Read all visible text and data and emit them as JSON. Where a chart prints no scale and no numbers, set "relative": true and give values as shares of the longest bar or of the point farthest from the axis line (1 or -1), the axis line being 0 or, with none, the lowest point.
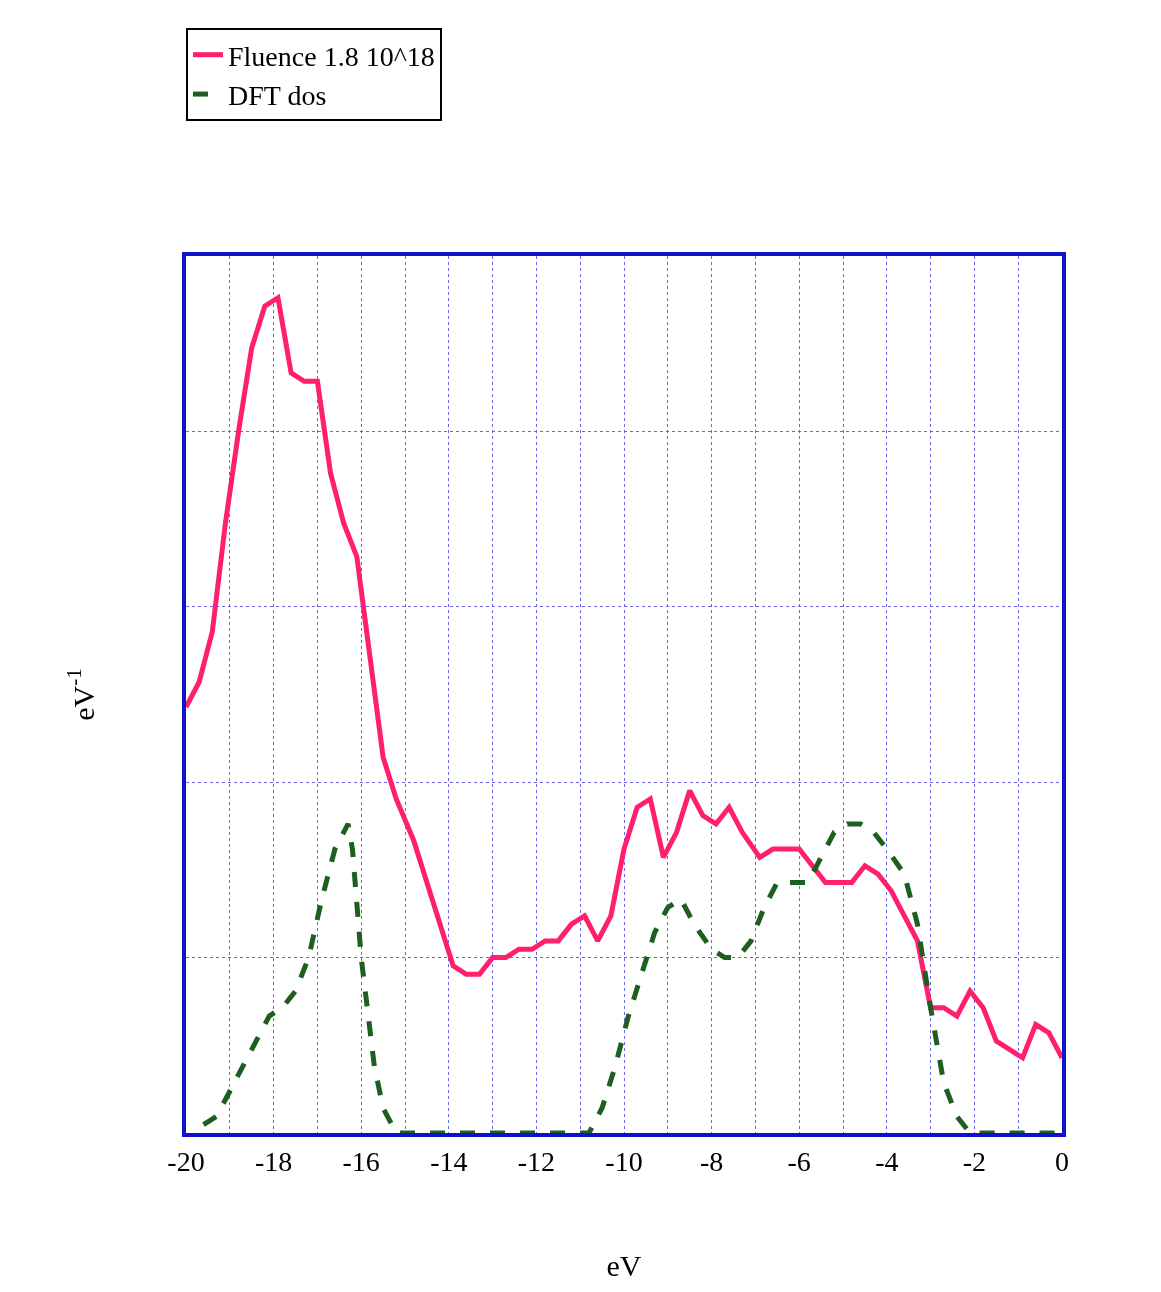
{
  "chart_data": {
    "type": "line",
    "relative": true,
    "xlabel": "eV",
    "ylabel": "eV$^{-1}$",
    "xlim": [
      -20,
      0
    ],
    "xticks": [
      -20,
      {
        "value": -19,
        "label": null
      },
      -18,
      {
        "value": -17,
        "label": null
      },
      -16,
      {
        "value": -15,
        "label": null
      },
      -14,
      {
        "value": -13,
        "label": null
      },
      -12,
      {
        "value": -11,
        "label": null
      },
      -10,
      {
        "value": -9,
        "label": null
      },
      -8,
      {
        "value": -7,
        "label": null
      },
      -6,
      {
        "value": -5,
        "label": null
      },
      -4,
      {
        "value": -3,
        "label": null
      },
      -2,
      {
        "value": -1,
        "label": null
      },
      0
    ],
    "grid": true,
    "legend": "top left",
    "marker": "none",
    "series": [
      {
        "name": "Fluence 1.8 10^18",
        "color": "#ff1f6e",
        "line_style": "solid",
        "x": [
          -20,
          -19.7,
          -19.4,
          -19.1,
          -18.8,
          -18.5,
          -18.2,
          -17.9,
          -17.6,
          -17.3,
          -17.0,
          -16.7,
          -16.4,
          -16.1,
          -15.8,
          -15.5,
          -15.2,
          -14.8,
          -14.5,
          -14.2,
          -13.9,
          -13.6,
          -13.3,
          -13.0,
          -12.7,
          -12.4,
          -12.1,
          -11.8,
          -11.5,
          -11.2,
          -10.9,
          -10.6,
          -10.3,
          -10.0,
          -9.7,
          -9.4,
          -9.1,
          -8.8,
          -8.5,
          -8.2,
          -7.9,
          -7.6,
          -7.3,
          -6.9,
          -6.6,
          -6.3,
          -6.0,
          -5.7,
          -5.4,
          -5.1,
          -4.8,
          -4.5,
          -4.2,
          -3.9,
          -3.6,
          -3.3,
          -3.0,
          -2.7,
          -2.4,
          -2.1,
          -1.8,
          -1.5,
          -1.2,
          -0.9,
          -0.6,
          -0.3,
          0
        ],
        "values": [
          0.51,
          0.54,
          0.6,
          0.73,
          0.84,
          0.94,
          0.99,
          1.0,
          0.91,
          0.9,
          0.9,
          0.79,
          0.73,
          0.69,
          0.57,
          0.45,
          0.4,
          0.35,
          0.3,
          0.25,
          0.2,
          0.19,
          0.19,
          0.21,
          0.21,
          0.22,
          0.22,
          0.23,
          0.23,
          0.25,
          0.26,
          0.23,
          0.26,
          0.34,
          0.39,
          0.4,
          0.33,
          0.36,
          0.41,
          0.38,
          0.37,
          0.39,
          0.36,
          0.33,
          0.34,
          0.34,
          0.34,
          0.32,
          0.3,
          0.3,
          0.3,
          0.32,
          0.31,
          0.29,
          0.26,
          0.23,
          0.15,
          0.15,
          0.14,
          0.17,
          0.15,
          0.11,
          0.1,
          0.09,
          0.13,
          0.12,
          0.09
        ]
      },
      {
        "name": "DFT dos",
        "color": "#1e5e1e",
        "line_style": "dashed",
        "x": [
          -19.6,
          -19.3,
          -19.0,
          -18.7,
          -18.4,
          -18.1,
          -17.8,
          -17.5,
          -17.2,
          -16.9,
          -16.6,
          -16.3,
          -16.2,
          -16.0,
          -15.7,
          -15.5,
          -15.2,
          -14.7,
          -10.8,
          -10.5,
          -10.2,
          -9.9,
          -9.6,
          -9.3,
          -9.0,
          -8.7,
          -8.4,
          -8.0,
          -7.7,
          -7.4,
          -7.1,
          -6.8,
          -6.5,
          -6.2,
          -5.8,
          -5.5,
          -5.2,
          -4.9,
          -4.6,
          -4.3,
          -4.0,
          -3.6,
          -3.3,
          -3.0,
          -2.7,
          -2.4,
          -2.1,
          -1.8,
          0
        ],
        "values": [
          0.01,
          0.02,
          0.05,
          0.08,
          0.11,
          0.14,
          0.15,
          0.17,
          0.21,
          0.28,
          0.34,
          0.37,
          0.34,
          0.21,
          0.08,
          0.03,
          0,
          0,
          0,
          0.03,
          0.08,
          0.14,
          0.19,
          0.24,
          0.27,
          0.28,
          0.25,
          0.22,
          0.21,
          0.21,
          0.23,
          0.27,
          0.3,
          0.3,
          0.3,
          0.33,
          0.36,
          0.37,
          0.37,
          0.36,
          0.34,
          0.31,
          0.25,
          0.15,
          0.06,
          0.02,
          0,
          0,
          0
        ]
      }
    ]
  }
}
